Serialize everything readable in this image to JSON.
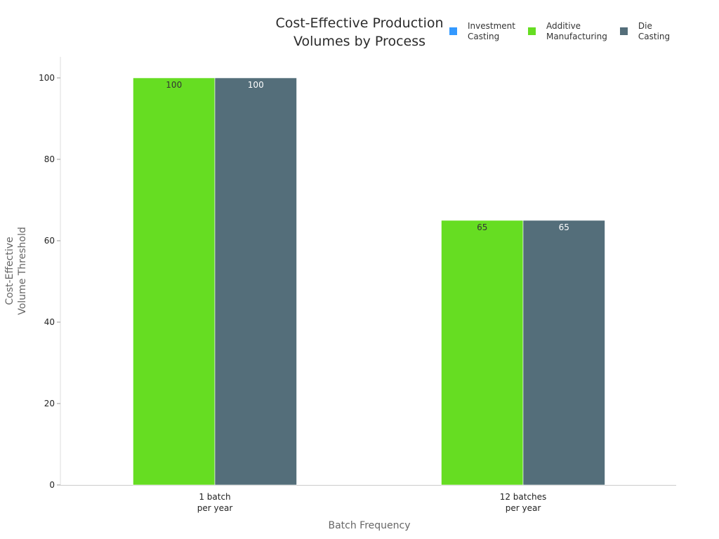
{
  "chart_data": {
    "type": "bar",
    "title": "Cost-Effective Production\nVolumes by Process",
    "xlabel": "Batch Frequency",
    "ylabel": "Cost-Effective\nVolume Threshold",
    "categories": [
      "1 batch\nper year",
      "12 batches\nper year"
    ],
    "series": [
      {
        "name": "Investment\nCasting",
        "color": "#3399ff",
        "values": [
          0,
          0
        ],
        "labels": [
          "",
          ""
        ]
      },
      {
        "name": "Additive\nManufacturing",
        "color": "#66dd22",
        "values": [
          100,
          65
        ],
        "labels": [
          "100",
          "65"
        ]
      },
      {
        "name": "Die\nCasting",
        "color": "#546e7a",
        "values": [
          100,
          65
        ],
        "labels": [
          "100",
          "65"
        ]
      }
    ],
    "ylim": [
      0,
      100
    ],
    "yticks": [
      0,
      20,
      40,
      60,
      80,
      100
    ],
    "grid": false,
    "legend_position": "top-right"
  }
}
